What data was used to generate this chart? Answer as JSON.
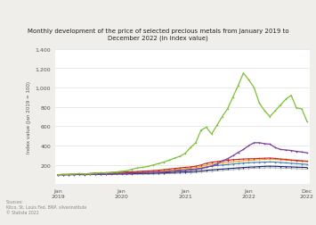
{
  "title": "Monthly development of the price of selected precious metals from January 2019 to\nDecember 2022 (in index value)",
  "ylabel": "Index value (Jan 2019 = 100)",
  "ylim": [
    0,
    1400
  ],
  "yticks": [
    0,
    200,
    400,
    600,
    800,
    1000,
    1200,
    1400
  ],
  "ytick_labels": [
    "",
    "200",
    "400",
    "600",
    "800",
    "1,000",
    "1,200",
    "1,400"
  ],
  "n_points": 48,
  "source_text": "Sources:\nKitco, St. Louis Fed, BNP, silverinstitute\n© Statista 2022",
  "background_color": "#f0eeeb",
  "plot_bg_color": "#ffffff",
  "lines": {
    "green": {
      "color": "#7cc035",
      "values": [
        100,
        105,
        102,
        108,
        112,
        108,
        110,
        115,
        120,
        118,
        122,
        128,
        135,
        140,
        155,
        170,
        175,
        185,
        200,
        215,
        230,
        250,
        270,
        290,
        320,
        380,
        430,
        560,
        590,
        520,
        610,
        700,
        780,
        900,
        1020,
        1150,
        1080,
        1000,
        840,
        760,
        700,
        760,
        820,
        880,
        920,
        790,
        780,
        650
      ]
    },
    "purple": {
      "color": "#7b3f9e",
      "values": [
        100,
        100,
        100,
        101,
        102,
        101,
        103,
        105,
        106,
        108,
        110,
        112,
        113,
        115,
        117,
        118,
        120,
        122,
        124,
        126,
        128,
        132,
        136,
        140,
        144,
        148,
        154,
        162,
        175,
        190,
        210,
        240,
        265,
        295,
        330,
        360,
        400,
        430,
        430,
        420,
        415,
        380,
        360,
        355,
        350,
        340,
        335,
        325
      ]
    },
    "red": {
      "color": "#cc2222",
      "values": [
        100,
        101,
        103,
        106,
        110,
        108,
        112,
        116,
        118,
        120,
        122,
        124,
        126,
        128,
        130,
        133,
        136,
        138,
        142,
        146,
        152,
        158,
        164,
        170,
        175,
        180,
        188,
        200,
        218,
        228,
        235,
        242,
        248,
        255,
        258,
        262,
        264,
        265,
        268,
        270,
        272,
        268,
        262,
        258,
        252,
        248,
        244,
        240
      ]
    },
    "orange": {
      "color": "#f0a020",
      "values": [
        100,
        101,
        102,
        104,
        107,
        106,
        108,
        111,
        113,
        115,
        117,
        118,
        120,
        122,
        124,
        126,
        128,
        130,
        132,
        135,
        140,
        146,
        152,
        158,
        163,
        168,
        174,
        184,
        198,
        208,
        215,
        220,
        226,
        232,
        238,
        244,
        248,
        252,
        255,
        258,
        260,
        258,
        254,
        250,
        246,
        242,
        238,
        234
      ]
    },
    "blue": {
      "color": "#3a7fc1",
      "values": [
        100,
        100,
        101,
        102,
        104,
        103,
        105,
        107,
        109,
        111,
        113,
        115,
        116,
        118,
        120,
        122,
        124,
        126,
        128,
        131,
        135,
        140,
        144,
        148,
        152,
        156,
        160,
        168,
        180,
        188,
        194,
        200,
        204,
        210,
        215,
        220,
        224,
        226,
        228,
        230,
        232,
        230,
        226,
        222,
        218,
        214,
        210,
        206
      ]
    },
    "darkblue": {
      "color": "#1a2a6c",
      "values": [
        100,
        100,
        100,
        101,
        102,
        101,
        102,
        103,
        104,
        105,
        106,
        107,
        108,
        109,
        110,
        111,
        112,
        113,
        114,
        116,
        118,
        121,
        123,
        126,
        128,
        130,
        134,
        138,
        145,
        150,
        154,
        158,
        162,
        166,
        170,
        174,
        178,
        180,
        183,
        186,
        188,
        186,
        184,
        182,
        180,
        178,
        176,
        174
      ]
    },
    "gray": {
      "color": "#b0b0b0",
      "values": [
        100,
        99,
        99,
        100,
        100,
        99,
        100,
        100,
        101,
        101,
        102,
        102,
        103,
        103,
        104,
        104,
        105,
        105,
        106,
        107,
        109,
        111,
        113,
        115,
        117,
        119,
        122,
        126,
        132,
        136,
        140,
        144,
        148,
        152,
        156,
        160,
        164,
        166,
        168,
        170,
        172,
        170,
        168,
        166,
        164,
        162,
        160,
        158
      ]
    }
  }
}
